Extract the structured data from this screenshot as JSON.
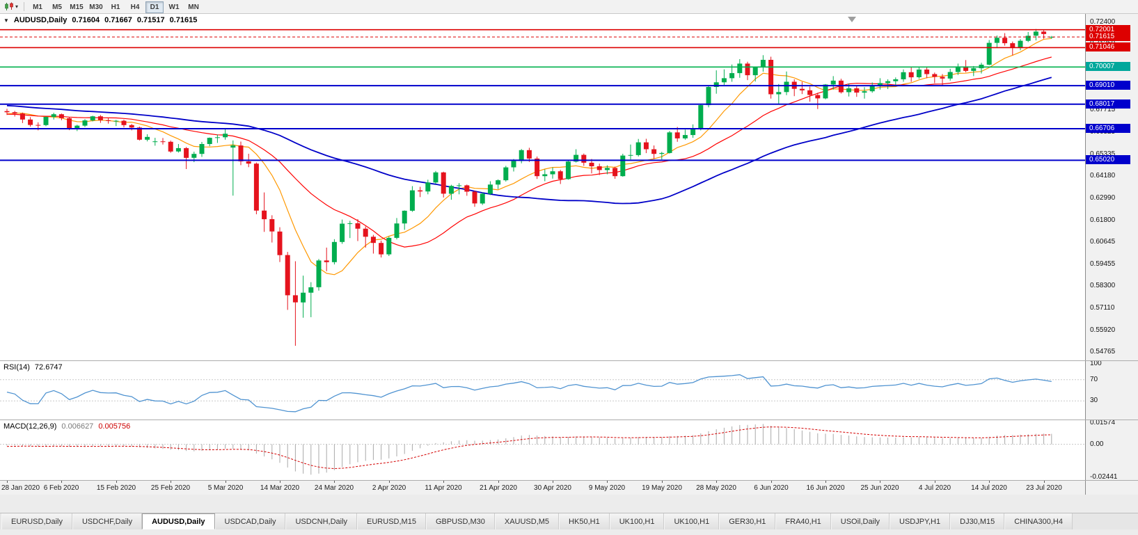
{
  "toolbar": {
    "chart_menu_icon": "candlestick-chart-icon",
    "dropdown_icon": "chevron-down-icon",
    "timeframes": [
      "M1",
      "M5",
      "M15",
      "M30",
      "H1",
      "H4",
      "D1",
      "W1",
      "MN"
    ],
    "active_timeframe": "D1"
  },
  "chart_header": {
    "symbol": "AUDUSD,Daily",
    "open": "0.71604",
    "high": "0.71667",
    "low": "0.71517",
    "close": "0.71615"
  },
  "indicators": {
    "rsi": {
      "label": "RSI(14)",
      "value": "72.6747",
      "axis_labels": [
        "100",
        "70",
        "30"
      ],
      "levels": [
        70,
        30
      ],
      "range": [
        0,
        100
      ],
      "color": "#4f93d1"
    },
    "macd": {
      "label": "MACD(12,26,9)",
      "main_value": "0.006627",
      "signal_value": "0.005756",
      "axis_labels": [
        "0.01574",
        "0.00",
        "-0.02441"
      ],
      "range": [
        -0.02441,
        0.01574
      ],
      "histogram_color": "#a9a9a9",
      "signal_color": "#d40000"
    }
  },
  "price_axis": {
    "min": 0.54765,
    "max": 0.724,
    "ticks": [
      "0.72400",
      "0.71250",
      "0.70060",
      "0.68870",
      "0.67715",
      "0.66525",
      "0.65335",
      "0.64180",
      "0.62990",
      "0.61800",
      "0.60645",
      "0.59455",
      "0.58300",
      "0.57110",
      "0.55920",
      "0.54765"
    ]
  },
  "levels": [
    {
      "price": 0.72001,
      "label": "0.72001",
      "color": "#dd0000",
      "badge_color": "#dd0000",
      "width": 1.6
    },
    {
      "price": 0.71046,
      "label": "0.71046",
      "color": "#dd0000",
      "badge_color": "#dd0000",
      "width": 1.6
    },
    {
      "price": 0.70007,
      "label": "0.70007",
      "color": "#00b14c",
      "badge_color": "#00a79b",
      "width": 1.6
    },
    {
      "price": 0.6901,
      "label": "0.69010",
      "color": "#0000cc",
      "badge_color": "#0000cc",
      "width": 2
    },
    {
      "price": 0.68017,
      "label": "0.68017",
      "color": "#0000cc",
      "badge_color": "#0000cc",
      "width": 2
    },
    {
      "price": 0.66706,
      "label": "0.66706",
      "color": "#0000cc",
      "badge_color": "#0000cc",
      "width": 2
    },
    {
      "price": 0.6502,
      "label": "0.65020",
      "color": "#0000cc",
      "badge_color": "#0000cc",
      "width": 2
    }
  ],
  "current_price": {
    "value": 0.71615,
    "label": "0.71615",
    "color": "#dd0000"
  },
  "time_axis": {
    "label_every": 7,
    "labels": [
      "28 Jan 2020",
      "6 Feb 2020",
      "15 Feb 2020",
      "25 Feb 2020",
      "5 Mar 2020",
      "14 Mar 2020",
      "24 Mar 2020",
      "2 Apr 2020",
      "11 Apr 2020",
      "21 Apr 2020",
      "30 Apr 2020",
      "9 May 2020",
      "19 May 2020",
      "28 May 2020",
      "6 Jun 2020",
      "16 Jun 2020",
      "25 Jun 2020",
      "4 Jul 2020",
      "14 Jul 2020",
      "23 Jul 2020"
    ]
  },
  "tabs": {
    "active_index": 2,
    "items": [
      "EURUSD,Daily",
      "USDCHF,Daily",
      "AUDUSD,Daily",
      "USDCAD,Daily",
      "USDCNH,Daily",
      "EURUSD,M15",
      "GBPUSD,M30",
      "XAUUSD,M5",
      "HK50,H1",
      "UK100,H1",
      "UK100,H1",
      "GER30,H1",
      "FRA40,H1",
      "USOil,Daily",
      "USDJPY,H1",
      "DJ30,M15",
      "CHINA300,H4"
    ]
  },
  "chart_data": {
    "type": "candlestick",
    "symbol": "AUDUSD",
    "timeframe": "Daily",
    "up_color": "#00ad4e",
    "down_color": "#e5131d",
    "moving_averages": [
      {
        "period": 8,
        "color": "#ff9800",
        "width": 1.2
      },
      {
        "period": 20,
        "color": "#ff0000",
        "width": 1.2
      },
      {
        "period": 50,
        "color": "#0000c8",
        "width": 1.8
      }
    ],
    "pre_closes": [
      0.688,
      0.6875,
      0.6878,
      0.687,
      0.6865,
      0.6868,
      0.686,
      0.6856,
      0.685,
      0.6852,
      0.6845,
      0.684,
      0.6842,
      0.6835,
      0.683,
      0.6825,
      0.6828,
      0.682,
      0.6815,
      0.681,
      0.6812,
      0.6805,
      0.68,
      0.6795,
      0.6798,
      0.679,
      0.6785,
      0.678,
      0.6782,
      0.6775,
      0.677,
      0.6765,
      0.6768,
      0.676,
      0.6755,
      0.675,
      0.6752,
      0.6745,
      0.674,
      0.6735,
      0.6738,
      0.673,
      0.6725,
      0.672,
      0.6722,
      0.6748,
      0.6755,
      0.676,
      0.6765,
      0.677
    ],
    "candles": [
      [
        0.6765,
        0.6777,
        0.6744,
        0.6759
      ],
      [
        0.6759,
        0.6766,
        0.6736,
        0.6752
      ],
      [
        0.6752,
        0.6757,
        0.6701,
        0.672
      ],
      [
        0.672,
        0.6733,
        0.6682,
        0.6691
      ],
      [
        0.6691,
        0.6705,
        0.6662,
        0.669
      ],
      [
        0.669,
        0.6736,
        0.6684,
        0.6734
      ],
      [
        0.6734,
        0.6756,
        0.672,
        0.6748
      ],
      [
        0.6748,
        0.6752,
        0.6716,
        0.6727
      ],
      [
        0.6727,
        0.6733,
        0.6663,
        0.6671
      ],
      [
        0.6671,
        0.6692,
        0.6658,
        0.6687
      ],
      [
        0.6687,
        0.6722,
        0.668,
        0.6715
      ],
      [
        0.6715,
        0.674,
        0.671,
        0.6737
      ],
      [
        0.6737,
        0.6744,
        0.6702,
        0.6716
      ],
      [
        0.6716,
        0.673,
        0.6698,
        0.6712
      ],
      [
        0.6712,
        0.6718,
        0.6685,
        0.6713
      ],
      [
        0.6713,
        0.6719,
        0.6678,
        0.669
      ],
      [
        0.669,
        0.6696,
        0.6662,
        0.6677
      ],
      [
        0.6677,
        0.6682,
        0.6608,
        0.6612
      ],
      [
        0.6612,
        0.6641,
        0.6603,
        0.6627
      ],
      [
        0.66,
        0.6622,
        0.658,
        0.6603
      ],
      [
        0.6603,
        0.6621,
        0.6586,
        0.6601
      ],
      [
        0.6601,
        0.6607,
        0.6542,
        0.6549
      ],
      [
        0.6549,
        0.6589,
        0.6543,
        0.6567
      ],
      [
        0.6567,
        0.6573,
        0.6455,
        0.6515
      ],
      [
        0.6515,
        0.6548,
        0.6492,
        0.6536
      ],
      [
        0.6536,
        0.66,
        0.652,
        0.6589
      ],
      [
        0.6589,
        0.6624,
        0.6577,
        0.6622
      ],
      [
        0.6622,
        0.664,
        0.6595,
        0.6625
      ],
      [
        0.6625,
        0.6672,
        0.6612,
        0.6644
      ],
      [
        0.657,
        0.6608,
        0.6313,
        0.6581
      ],
      [
        0.6581,
        0.6602,
        0.6476,
        0.6496
      ],
      [
        0.6496,
        0.6537,
        0.6465,
        0.6484
      ],
      [
        0.6484,
        0.649,
        0.6213,
        0.6233
      ],
      [
        0.6233,
        0.633,
        0.6119,
        0.6187
      ],
      [
        0.6187,
        0.6208,
        0.6062,
        0.6121
      ],
      [
        0.6121,
        0.6144,
        0.5958,
        0.5995
      ],
      [
        0.5995,
        0.6012,
        0.5702,
        0.578
      ],
      [
        0.578,
        0.5962,
        0.551,
        0.5742
      ],
      [
        0.5742,
        0.5885,
        0.566,
        0.5794
      ],
      [
        0.5794,
        0.585,
        0.5663,
        0.5823
      ],
      [
        0.5823,
        0.5974,
        0.5805,
        0.5966
      ],
      [
        0.5966,
        0.6035,
        0.5909,
        0.5957
      ],
      [
        0.5957,
        0.608,
        0.5945,
        0.6065
      ],
      [
        0.6065,
        0.6185,
        0.6055,
        0.6163
      ],
      [
        0.6163,
        0.6178,
        0.6086,
        0.6165
      ],
      [
        0.6165,
        0.6187,
        0.607,
        0.6136
      ],
      [
        0.6136,
        0.6148,
        0.6035,
        0.6093
      ],
      [
        0.6093,
        0.6103,
        0.6003,
        0.606
      ],
      [
        0.606,
        0.6072,
        0.5982,
        0.5999
      ],
      [
        0.5999,
        0.6094,
        0.599,
        0.6087
      ],
      [
        0.6087,
        0.6193,
        0.6079,
        0.6164
      ],
      [
        0.6164,
        0.6234,
        0.613,
        0.6232
      ],
      [
        0.6232,
        0.6364,
        0.6226,
        0.6341
      ],
      [
        0.6341,
        0.636,
        0.6305,
        0.6335
      ],
      [
        0.6335,
        0.6398,
        0.632,
        0.6383
      ],
      [
        0.6383,
        0.6445,
        0.6375,
        0.6437
      ],
      [
        0.6437,
        0.6441,
        0.6303,
        0.6323
      ],
      [
        0.6323,
        0.6371,
        0.6291,
        0.6365
      ],
      [
        0.6365,
        0.638,
        0.632,
        0.6368
      ],
      [
        0.6368,
        0.6372,
        0.6312,
        0.6334
      ],
      [
        0.6334,
        0.634,
        0.6253,
        0.6271
      ],
      [
        0.6271,
        0.633,
        0.6263,
        0.6323
      ],
      [
        0.6323,
        0.639,
        0.6316,
        0.6372
      ],
      [
        0.6372,
        0.64,
        0.6348,
        0.6395
      ],
      [
        0.6395,
        0.6472,
        0.6388,
        0.6464
      ],
      [
        0.6464,
        0.6509,
        0.6442,
        0.6498
      ],
      [
        0.6498,
        0.6562,
        0.6486,
        0.6556
      ],
      [
        0.6556,
        0.6569,
        0.6493,
        0.6511
      ],
      [
        0.6511,
        0.6522,
        0.6402,
        0.6417
      ],
      [
        0.6417,
        0.6453,
        0.639,
        0.6427
      ],
      [
        0.6427,
        0.6464,
        0.6404,
        0.6443
      ],
      [
        0.6443,
        0.6451,
        0.6375,
        0.6401
      ],
      [
        0.6401,
        0.6504,
        0.6398,
        0.6495
      ],
      [
        0.6495,
        0.6561,
        0.649,
        0.6531
      ],
      [
        0.6531,
        0.6538,
        0.6472,
        0.6489
      ],
      [
        0.6489,
        0.6509,
        0.6432,
        0.647
      ],
      [
        0.647,
        0.6484,
        0.6423,
        0.645
      ],
      [
        0.645,
        0.6475,
        0.6427,
        0.6461
      ],
      [
        0.6461,
        0.6468,
        0.6403,
        0.6417
      ],
      [
        0.6417,
        0.6537,
        0.6414,
        0.6527
      ],
      [
        0.6527,
        0.6586,
        0.6506,
        0.653
      ],
      [
        0.653,
        0.6616,
        0.6522,
        0.6598
      ],
      [
        0.6598,
        0.6617,
        0.654,
        0.6561
      ],
      [
        0.6561,
        0.6581,
        0.6509,
        0.6536
      ],
      [
        0.6536,
        0.6547,
        0.6506,
        0.6541
      ],
      [
        0.6541,
        0.6659,
        0.6538,
        0.6651
      ],
      [
        0.6651,
        0.668,
        0.6601,
        0.6619
      ],
      [
        0.6619,
        0.6666,
        0.6612,
        0.6637
      ],
      [
        0.6637,
        0.6694,
        0.6622,
        0.6667
      ],
      [
        0.6667,
        0.6801,
        0.6662,
        0.6797
      ],
      [
        0.6797,
        0.6899,
        0.6785,
        0.6894
      ],
      [
        0.6894,
        0.6983,
        0.6858,
        0.6919
      ],
      [
        0.6919,
        0.6988,
        0.6905,
        0.6941
      ],
      [
        0.6941,
        0.7014,
        0.6922,
        0.6968
      ],
      [
        0.6968,
        0.7043,
        0.6943,
        0.7019
      ],
      [
        0.7019,
        0.7029,
        0.6931,
        0.6957
      ],
      [
        0.6957,
        0.7002,
        0.6923,
        0.7
      ],
      [
        0.7,
        0.7064,
        0.6976,
        0.7039
      ],
      [
        0.7039,
        0.7056,
        0.6832,
        0.6855
      ],
      [
        0.6855,
        0.691,
        0.6799,
        0.6867
      ],
      [
        0.6867,
        0.6977,
        0.685,
        0.6922
      ],
      [
        0.6922,
        0.6935,
        0.6845,
        0.6884
      ],
      [
        0.6884,
        0.6921,
        0.6856,
        0.6876
      ],
      [
        0.6876,
        0.6896,
        0.6815,
        0.6851
      ],
      [
        0.6851,
        0.6863,
        0.6776,
        0.6833
      ],
      [
        0.6833,
        0.691,
        0.6828,
        0.6907
      ],
      [
        0.6907,
        0.6952,
        0.688,
        0.6928
      ],
      [
        0.6928,
        0.6938,
        0.6859,
        0.6866
      ],
      [
        0.6866,
        0.6913,
        0.6843,
        0.6887
      ],
      [
        0.6887,
        0.6898,
        0.6841,
        0.6864
      ],
      [
        0.6864,
        0.6893,
        0.6832,
        0.6871
      ],
      [
        0.6871,
        0.6918,
        0.6863,
        0.6903
      ],
      [
        0.6903,
        0.6941,
        0.688,
        0.6915
      ],
      [
        0.6915,
        0.6935,
        0.6883,
        0.6925
      ],
      [
        0.6925,
        0.6945,
        0.6901,
        0.6935
      ],
      [
        0.6935,
        0.6988,
        0.6922,
        0.6973
      ],
      [
        0.6973,
        0.6998,
        0.6921,
        0.6946
      ],
      [
        0.6946,
        0.6999,
        0.6938,
        0.6987
      ],
      [
        0.6987,
        0.7,
        0.6941,
        0.6963
      ],
      [
        0.6963,
        0.6971,
        0.6915,
        0.6948
      ],
      [
        0.6948,
        0.6963,
        0.6902,
        0.6939
      ],
      [
        0.6939,
        0.6991,
        0.6928,
        0.6974
      ],
      [
        0.6974,
        0.7019,
        0.6958,
        0.7004
      ],
      [
        0.7004,
        0.7038,
        0.6972,
        0.698
      ],
      [
        0.698,
        0.7006,
        0.6952,
        0.6994
      ],
      [
        0.6994,
        0.7023,
        0.6966,
        0.7013
      ],
      [
        0.7013,
        0.7145,
        0.701,
        0.713
      ],
      [
        0.713,
        0.7169,
        0.7102,
        0.7157
      ],
      [
        0.7157,
        0.7182,
        0.7115,
        0.7128
      ],
      [
        0.7128,
        0.7137,
        0.7063,
        0.7104
      ],
      [
        0.7104,
        0.715,
        0.709,
        0.7141
      ],
      [
        0.7141,
        0.7188,
        0.7134,
        0.7168
      ],
      [
        0.7168,
        0.7204,
        0.7143,
        0.719
      ],
      [
        0.719,
        0.7197,
        0.7152,
        0.7177
      ],
      [
        0.71604,
        0.71667,
        0.71517,
        0.71615
      ]
    ]
  }
}
